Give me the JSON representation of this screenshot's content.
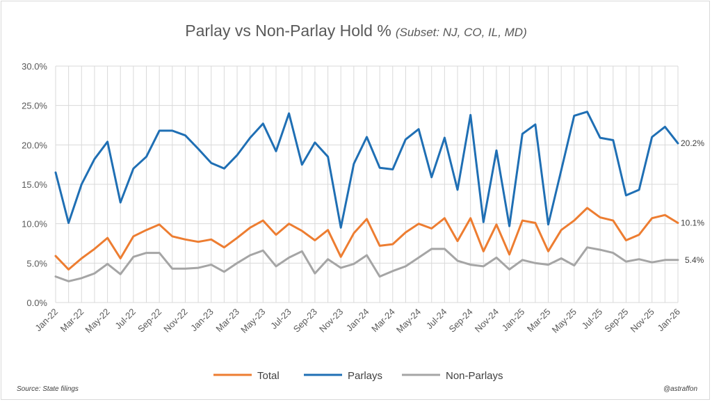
{
  "chart_data": {
    "type": "line",
    "title": "Parlay vs Non-Parlay Hold %",
    "subtitle": "(Subset: NJ, CO, IL, MD)",
    "xlabel": "",
    "ylabel": "",
    "ylim": [
      0,
      30
    ],
    "yticks": [
      "0.0%",
      "5.0%",
      "10.0%",
      "15.0%",
      "20.0%",
      "25.0%",
      "30.0%"
    ],
    "grid": true,
    "legend_position": "bottom",
    "x": [
      "Jan-22",
      "Feb-22",
      "Mar-22",
      "Apr-22",
      "May-22",
      "Jun-22",
      "Jul-22",
      "Aug-22",
      "Sep-22",
      "Oct-22",
      "Nov-22",
      "Dec-22",
      "Jan-23",
      "Feb-23",
      "Mar-23",
      "Apr-23",
      "May-23",
      "Jun-23",
      "Jul-23",
      "Aug-23",
      "Sep-23",
      "Oct-23",
      "Nov-23",
      "Dec-23",
      "Jan-24",
      "Feb-24",
      "Mar-24",
      "Apr-24",
      "May-24",
      "Jun-24",
      "Jul-24",
      "Aug-24",
      "Sep-24",
      "Oct-24",
      "Nov-24",
      "Dec-24",
      "Jan-25",
      "Feb-25",
      "Mar-25",
      "Apr-25",
      "May-25",
      "Jun-25",
      "Jul-25",
      "Aug-25",
      "Sep-25",
      "Oct-25",
      "Nov-25",
      "Dec-25",
      "Jan-26"
    ],
    "xtick_labels": [
      "Jan-22",
      "Mar-22",
      "May-22",
      "Jul-22",
      "Sep-22",
      "Nov-22",
      "Jan-23",
      "Mar-23",
      "May-23",
      "Jul-23",
      "Sep-23",
      "Nov-23",
      "Jan-24",
      "Mar-24",
      "May-24",
      "Jul-24",
      "Sep-24",
      "Nov-24",
      "Jan-25",
      "Mar-25",
      "May-25",
      "Jul-25",
      "Sep-25",
      "Nov-25",
      "Jan-26"
    ],
    "series": [
      {
        "name": "Total",
        "color": "#ed7d31",
        "end_label": "10.1%",
        "values": [
          5.9,
          4.2,
          5.6,
          6.8,
          8.2,
          5.6,
          8.4,
          9.2,
          9.9,
          8.4,
          8.0,
          7.7,
          8.0,
          7.0,
          8.2,
          9.5,
          10.4,
          8.6,
          10.0,
          9.1,
          7.9,
          9.2,
          5.8,
          8.8,
          10.6,
          7.2,
          7.4,
          8.9,
          10.0,
          9.4,
          10.7,
          7.8,
          10.7,
          6.5,
          9.9,
          6.1,
          10.4,
          10.1,
          6.5,
          9.2,
          10.4,
          12.0,
          10.8,
          10.4,
          7.9,
          8.6,
          10.7,
          11.1,
          10.1
        ]
      },
      {
        "name": "Parlays",
        "color": "#1f6fb4",
        "end_label": "20.2%",
        "values": [
          16.5,
          10.1,
          15.0,
          18.2,
          20.4,
          12.7,
          17.0,
          18.5,
          21.8,
          21.8,
          21.2,
          19.5,
          17.7,
          17.0,
          18.7,
          20.9,
          22.7,
          19.2,
          24.0,
          17.5,
          20.3,
          18.5,
          9.5,
          17.6,
          21.0,
          17.1,
          16.9,
          20.7,
          22.0,
          15.9,
          20.9,
          14.3,
          23.8,
          10.2,
          19.3,
          9.7,
          21.4,
          22.6,
          9.9,
          16.8,
          23.7,
          24.2,
          20.9,
          20.6,
          13.6,
          14.3,
          21.0,
          22.3,
          20.2
        ]
      },
      {
        "name": "Non-Parlays",
        "color": "#a5a5a5",
        "end_label": "5.4%",
        "values": [
          3.3,
          2.7,
          3.1,
          3.7,
          4.9,
          3.6,
          5.8,
          6.3,
          6.3,
          4.3,
          4.3,
          4.4,
          4.8,
          3.9,
          5.0,
          6.0,
          6.6,
          4.6,
          5.7,
          6.5,
          3.7,
          5.5,
          4.4,
          4.9,
          6.0,
          3.3,
          4.0,
          4.6,
          5.7,
          6.8,
          6.8,
          5.3,
          4.8,
          4.6,
          5.7,
          4.2,
          5.4,
          5.0,
          4.8,
          5.6,
          4.7,
          7.0,
          6.7,
          6.3,
          5.2,
          5.5,
          5.1,
          5.4,
          5.4
        ]
      }
    ],
    "source": "Source: State filings",
    "credit": "@astraffon"
  }
}
